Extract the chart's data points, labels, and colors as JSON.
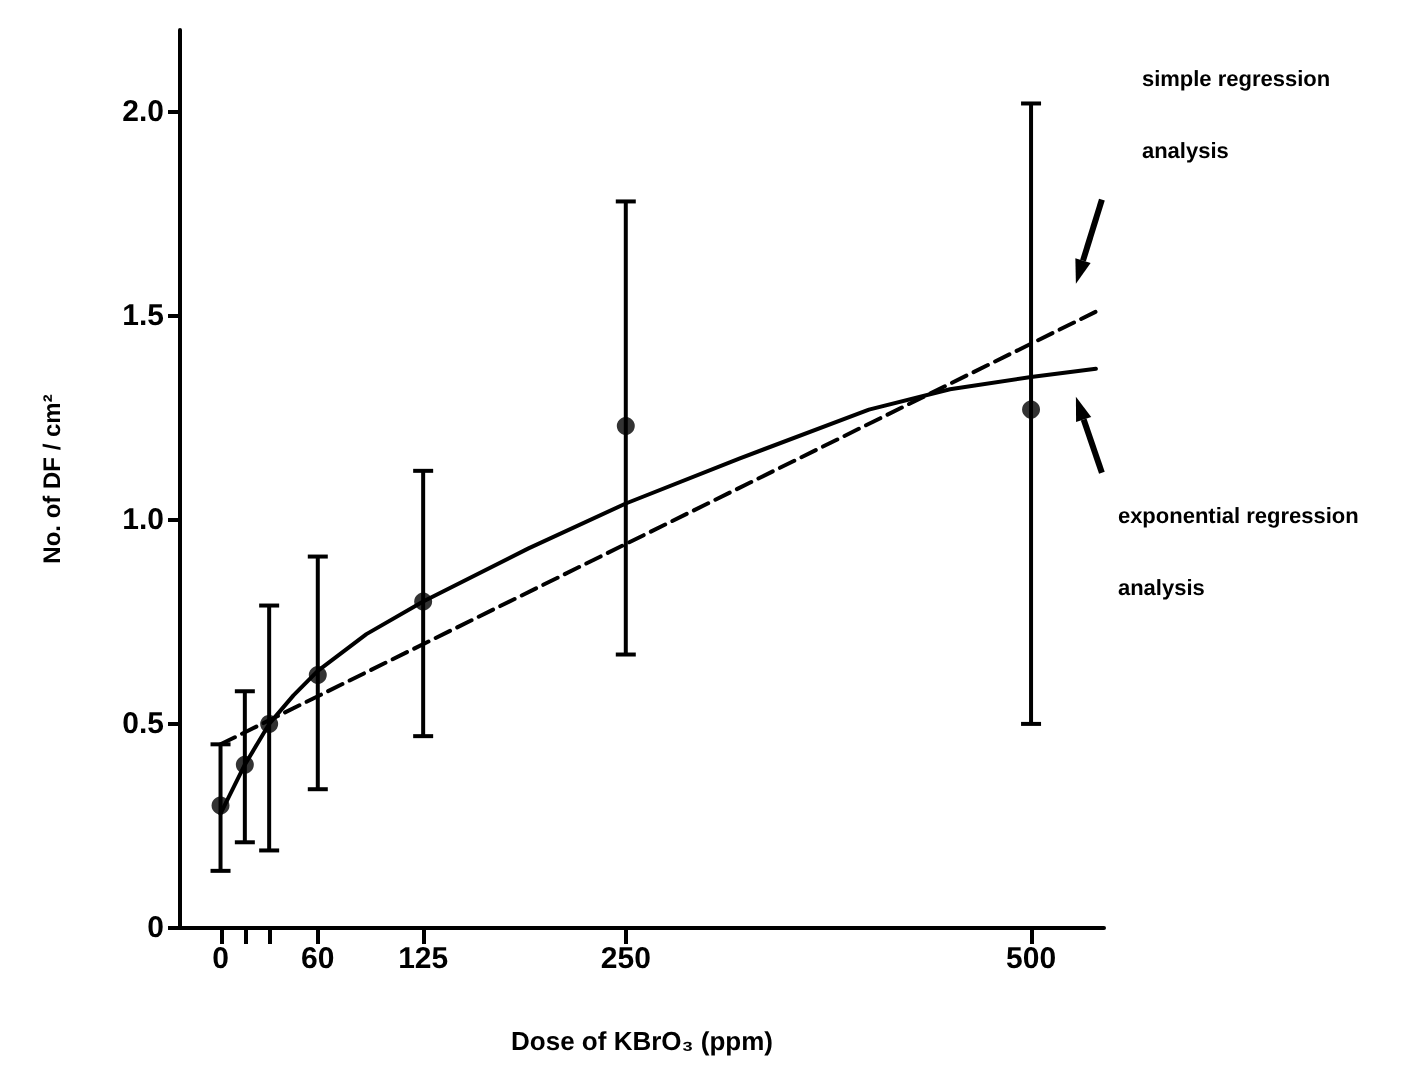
{
  "chart_data": {
    "type": "scatter",
    "xlabel": "Dose of KBrO₃ (ppm)",
    "ylabel": "No. of DF / cm²",
    "xlim": [
      -25,
      545
    ],
    "xticks": [
      0,
      {
        "value": 15,
        "label": null
      },
      {
        "value": 30,
        "label": null
      },
      60,
      125,
      250,
      500
    ],
    "ylim": [
      0,
      2.2
    ],
    "yticks": [
      0,
      0.5,
      {
        "value": 1,
        "label": "1.0"
      },
      1.5,
      {
        "value": 2,
        "label": "2.0"
      }
    ],
    "grid": false,
    "series": [
      {
        "type": "scatter",
        "color": "#000000",
        "marker": "circle",
        "x": [
          0,
          15,
          30,
          60,
          125,
          250,
          500
        ],
        "values": [
          0.3,
          0.4,
          0.5,
          0.62,
          0.8,
          1.23,
          1.27
        ],
        "errors": [
          [
            0.14,
            0.45
          ],
          [
            0.21,
            0.58
          ],
          [
            0.19,
            0.79
          ],
          [
            0.34,
            0.91
          ],
          [
            0.47,
            1.12
          ],
          [
            0.67,
            1.78
          ],
          [
            0.5,
            2.02
          ]
        ]
      },
      {
        "type": "line",
        "color": "#000000",
        "marker": "none",
        "line_style": "dashed",
        "x": [
          0,
          540
        ],
        "values": [
          0.45,
          1.51
        ]
      },
      {
        "type": "line",
        "color": "#000000",
        "marker": "none",
        "line_style": "solid",
        "x": [
          0,
          15,
          30,
          45,
          60,
          90,
          125,
          190,
          250,
          320,
          400,
          450,
          500,
          540
        ],
        "values": [
          0.28,
          0.4,
          0.5,
          0.57,
          0.63,
          0.72,
          0.8,
          0.93,
          1.04,
          1.15,
          1.27,
          1.32,
          1.35,
          1.37
        ]
      }
    ],
    "annotations": [
      "simple regression analysis",
      "exponential regression analysis"
    ]
  }
}
